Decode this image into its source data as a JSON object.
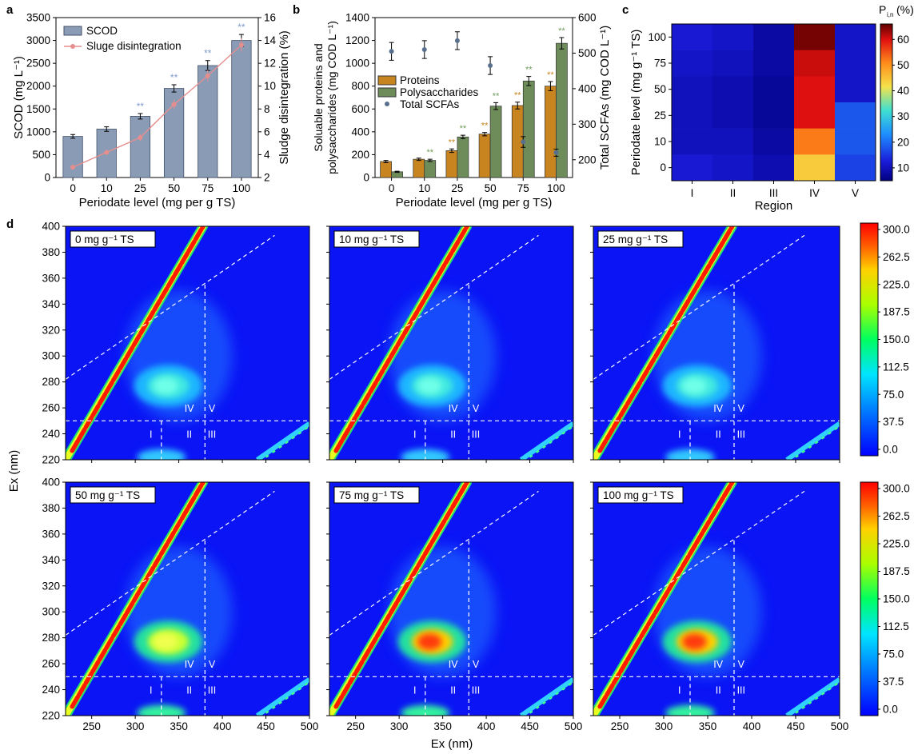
{
  "figure": {
    "panel_labels": [
      "a",
      "b",
      "c",
      "d"
    ]
  },
  "chart_data": [
    {
      "panel": "a",
      "type": "bar",
      "categories": [
        "0",
        "10",
        "25",
        "50",
        "75",
        "100"
      ],
      "series": [
        {
          "name": "SCOD",
          "axis": "left",
          "kind": "bar",
          "values": [
            900,
            1060,
            1340,
            1950,
            2450,
            3000
          ],
          "errors": [
            40,
            50,
            60,
            80,
            110,
            130
          ],
          "color": "#8a9bb5"
        },
        {
          "name": "Sluge disintegration",
          "axis": "right",
          "kind": "line",
          "values": [
            2.9,
            4.2,
            5.5,
            8.4,
            10.9,
            13.6
          ],
          "errors": [
            0.2,
            0.2,
            0.3,
            0.4,
            0.5,
            0.6
          ],
          "color": "#e58e8e"
        }
      ],
      "significance": [
        "",
        "",
        "**",
        "**",
        "**",
        "**"
      ],
      "xlabel": "Periodate level (mg per g TS)",
      "ylabel_left": "SCOD (mg L⁻¹)",
      "ylabel_right": "Sludge disintegration (%)",
      "ylim_left": [
        0,
        3500
      ],
      "yticks_left": [
        "0",
        "500",
        "1000",
        "1500",
        "2000",
        "2500",
        "3000",
        "3500"
      ],
      "ylim_right": [
        2,
        16
      ],
      "yticks_right": [
        "2",
        "4",
        "6",
        "8",
        "10",
        "12",
        "14",
        "16"
      ],
      "legend": "top-left"
    },
    {
      "panel": "b",
      "type": "bar",
      "categories": [
        "0",
        "10",
        "25",
        "50",
        "75",
        "100"
      ],
      "series": [
        {
          "name": "Proteins",
          "axis": "left",
          "kind": "bar",
          "values": [
            140,
            160,
            235,
            380,
            630,
            800
          ],
          "errors": [
            10,
            10,
            15,
            15,
            30,
            40
          ],
          "color": "#c8841f"
        },
        {
          "name": "Polysaccharides",
          "axis": "left",
          "kind": "bar",
          "values": [
            50,
            150,
            355,
            625,
            845,
            1175
          ],
          "errors": [
            5,
            10,
            15,
            30,
            40,
            50
          ],
          "color": "#6e8c5a"
        },
        {
          "name": "Total SCFAs",
          "axis": "right",
          "kind": "scatter",
          "values": [
            505,
            510,
            535,
            465,
            250,
            220
          ],
          "errors": [
            25,
            25,
            25,
            25,
            15,
            10
          ],
          "color": "#58708e"
        }
      ],
      "significance_proteins": [
        "",
        "",
        "**",
        "**",
        "**",
        "**"
      ],
      "significance_polysaccharides": [
        "",
        "**",
        "**",
        "**",
        "**",
        "**"
      ],
      "xlabel": "Periodate level (mg per g TS)",
      "ylabel_left_line1": "Soluable proteins and",
      "ylabel_left_line2": "polysaccharides (mg COD L⁻¹)",
      "ylabel_right": "Total SCFAs (mg COD L⁻¹)",
      "ylim_left": [
        0,
        1400
      ],
      "yticks_left": [
        "0",
        "200",
        "400",
        "600",
        "800",
        "1000",
        "1200",
        "1400"
      ],
      "ylim_right": [
        150,
        600
      ],
      "yticks_right": [
        "200",
        "300",
        "400",
        "500",
        "600"
      ],
      "legend": "middle-left"
    },
    {
      "panel": "c",
      "type": "heatmap",
      "x_categories": [
        "I",
        "II",
        "III",
        "IV",
        "V"
      ],
      "y_categories": [
        "100",
        "75",
        "50",
        "25",
        "10",
        "0"
      ],
      "values": [
        [
          12,
          11,
          8,
          65,
          11
        ],
        [
          11,
          10,
          8,
          61,
          11
        ],
        [
          10,
          9,
          7,
          60,
          11
        ],
        [
          10,
          9,
          7,
          60,
          18
        ],
        [
          10,
          10,
          8,
          52,
          18
        ],
        [
          12,
          11,
          9,
          44,
          16
        ]
      ],
      "xlabel": "Region",
      "ylabel": "Periodate level (mg g⁻¹ TS)",
      "colorbar_title": "P",
      "colorbar_subscript": "i,n",
      "colorbar_unit": "(%)",
      "colorbar_range": [
        5,
        66
      ],
      "colorbar_ticks": [
        "10",
        "20",
        "30",
        "40",
        "50",
        "60"
      ]
    },
    {
      "panel": "d",
      "type": "heatmap",
      "subplots": [
        {
          "label": "0 mg g⁻¹ TS",
          "peak_intensity": 80
        },
        {
          "label": "10 mg g⁻¹ TS",
          "peak_intensity": 85
        },
        {
          "label": "25 mg g⁻¹ TS",
          "peak_intensity": 92
        },
        {
          "label": "50 mg g⁻¹ TS",
          "peak_intensity": 200
        },
        {
          "label": "75 mg g⁻¹ TS",
          "peak_intensity": 290
        },
        {
          "label": "100 mg g⁻¹ TS",
          "peak_intensity": 300
        }
      ],
      "xlabel": "Ex (nm)",
      "ylabel": "Ex (nm)",
      "xlim": [
        220,
        500
      ],
      "ylim": [
        220,
        400
      ],
      "xticks": [
        "250",
        "300",
        "350",
        "400",
        "450",
        "500"
      ],
      "yticks": [
        "220",
        "240",
        "260",
        "280",
        "300",
        "320",
        "340",
        "360",
        "380",
        "400"
      ],
      "region_labels": [
        "I",
        "II",
        "III",
        "IV",
        "V"
      ],
      "colorbar_range": [
        0,
        300
      ],
      "colorbar_ticks": [
        "0.0",
        "37.5",
        "75.0",
        "112.5",
        "150.0",
        "187.5",
        "225.0",
        "262.5",
        "300.0"
      ]
    }
  ]
}
